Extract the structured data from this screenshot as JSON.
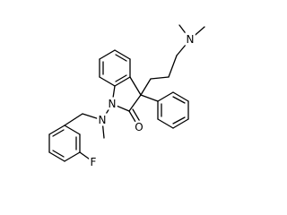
{
  "atoms": [
    "N",
    "N",
    "N",
    "O",
    "F"
  ]
}
